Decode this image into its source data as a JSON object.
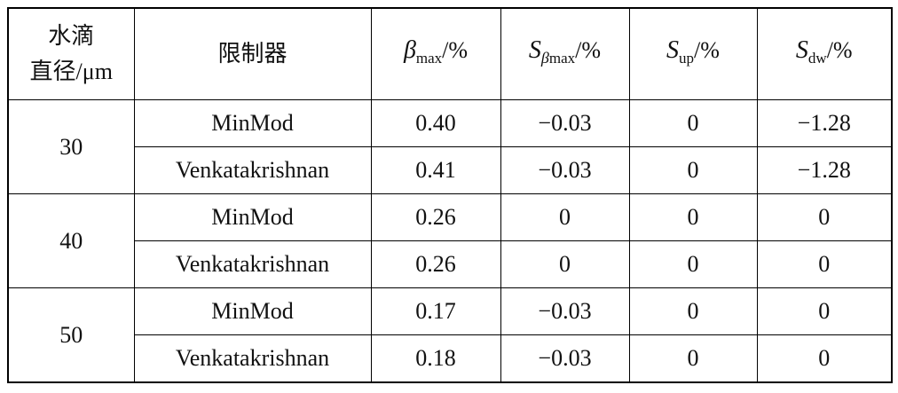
{
  "table": {
    "header": [
      {
        "lines": [
          "水滴",
          "直径/μm"
        ]
      },
      {
        "text": "限制器"
      },
      {
        "symbol": "β",
        "sub": [
          "max"
        ],
        "unit": "/%"
      },
      {
        "symbol": "S",
        "sub": [
          "β",
          "max"
        ],
        "unit": "/%"
      },
      {
        "symbol": "S",
        "sub": [
          "up"
        ],
        "unit": "/%"
      },
      {
        "symbol": "S",
        "sub": [
          "dw"
        ],
        "unit": "/%"
      }
    ],
    "groups": [
      {
        "diameter": "30",
        "rows": [
          [
            "MinMod",
            "0.40",
            "−0.03",
            "0",
            "−1.28"
          ],
          [
            "Venkatakrishnan",
            "0.41",
            "−0.03",
            "0",
            "−1.28"
          ]
        ]
      },
      {
        "diameter": "40",
        "rows": [
          [
            "MinMod",
            "0.26",
            "0",
            "0",
            "0"
          ],
          [
            "Venkatakrishnan",
            "0.26",
            "0",
            "0",
            "0"
          ]
        ]
      },
      {
        "diameter": "50",
        "rows": [
          [
            "MinMod",
            "0.17",
            "−0.03",
            "0",
            "0"
          ],
          [
            "Venkatakrishnan",
            "0.18",
            "−0.03",
            "0",
            "0"
          ]
        ]
      }
    ]
  }
}
